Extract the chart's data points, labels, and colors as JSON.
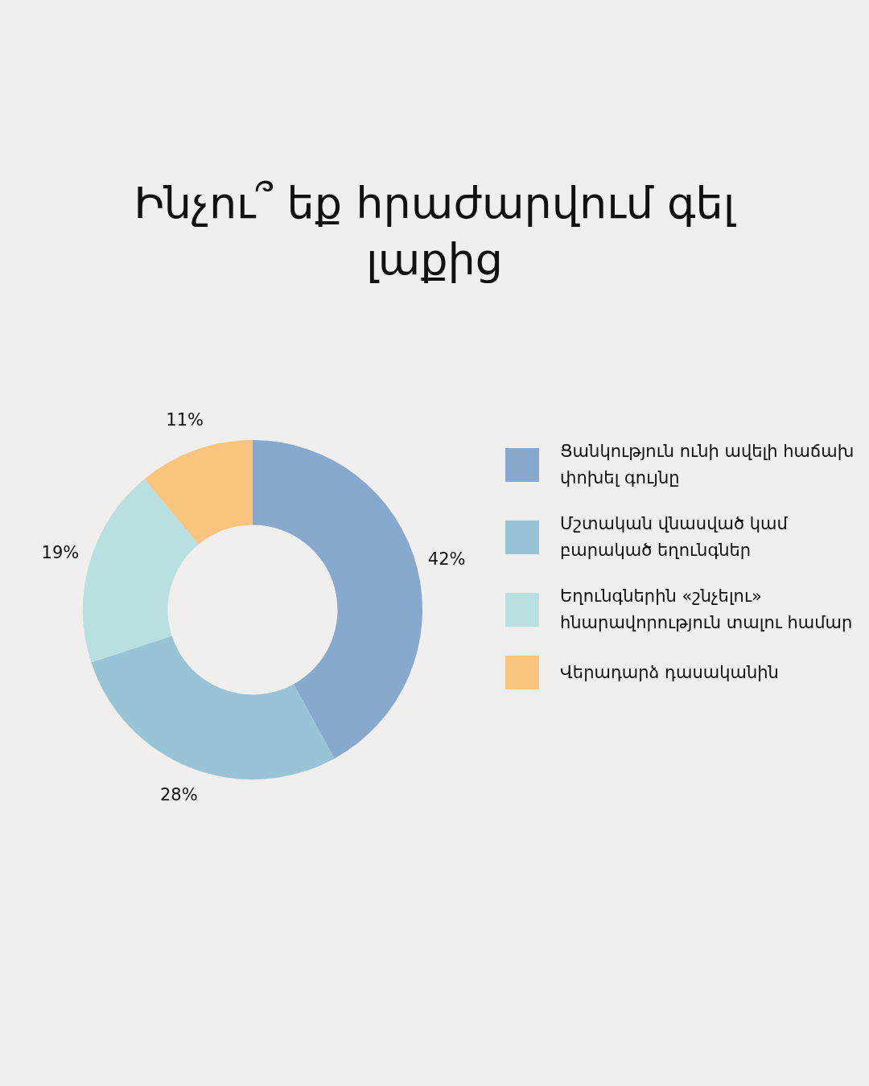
{
  "chart_data": {
    "type": "donut",
    "title": "Ինչու՞ եք հրաժարվում գել լաքից",
    "categories": [
      "Ցանկություն ունի ավելի հաճախ փոխել գույնը",
      "Մշտական վնասված կամ բարակած եղունգներ",
      "Եղունգներին «շնչելու» հնարավորություն տալու համար",
      "Վերադարձ դասականին"
    ],
    "values": [
      42,
      28,
      19,
      11
    ],
    "colors": [
      "#87a9cd",
      "#98c4d6",
      "#b9e0e1",
      "#f9c47d"
    ],
    "value_labels": [
      "42%",
      "28%",
      "19%",
      "11%"
    ],
    "legend": "right"
  }
}
